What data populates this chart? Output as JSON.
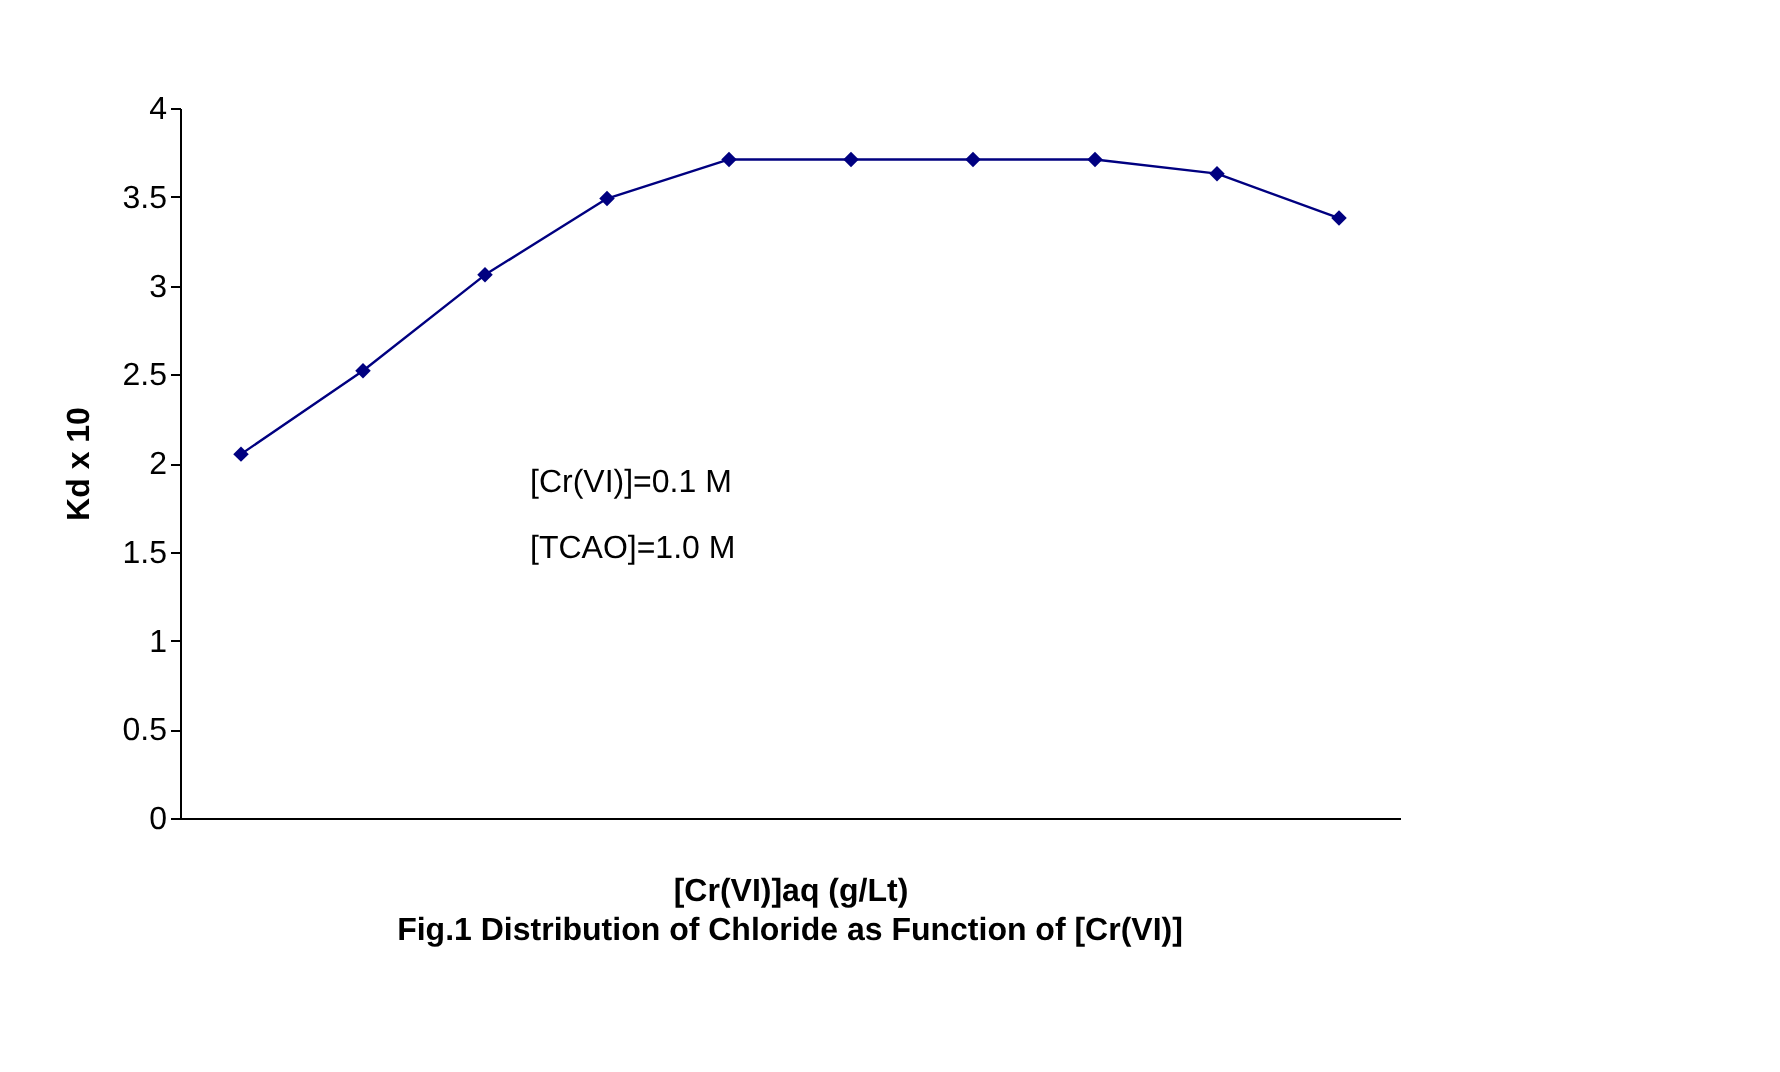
{
  "chart_data": {
    "type": "line",
    "title": "Fig.1    Distribution of Chloride  as Function of [Cr(VI)]",
    "xlabel": "[Cr(VI)]aq (g/Lt)",
    "ylabel": "Kd x 10",
    "categories": [
      null,
      null,
      null,
      null,
      null,
      null,
      null,
      null,
      null,
      null
    ],
    "series": [
      {
        "color": "#000080",
        "values": [
          2.05,
          2.52,
          3.06,
          3.49,
          3.71,
          3.71,
          3.71,
          3.71,
          3.63,
          3.38
        ]
      }
    ],
    "ylim": [
      0,
      4
    ],
    "yticks": [
      0,
      0.5,
      1,
      1.5,
      2,
      2.5,
      3,
      3.5,
      4
    ],
    "grid": false,
    "marker": "diamond",
    "line_style": "solid",
    "tick_labels": "y",
    "annotations": [
      "[Cr(VI)]=0.1 M",
      "[TCAO]=1.0 M"
    ]
  }
}
